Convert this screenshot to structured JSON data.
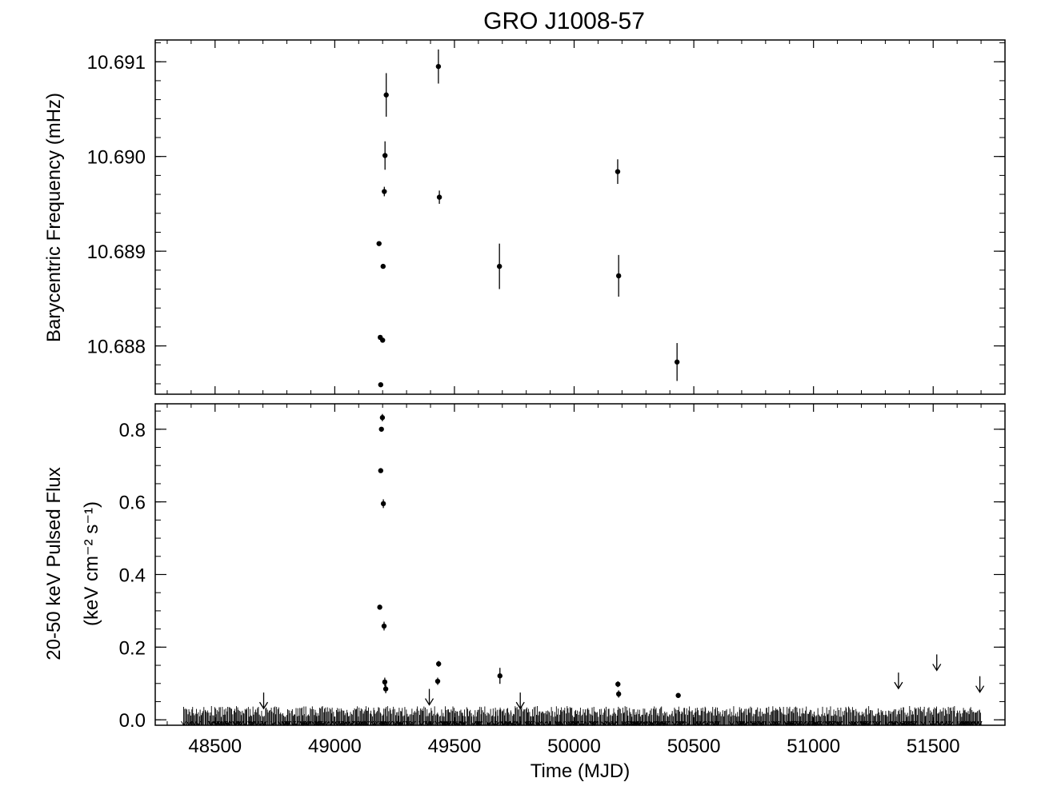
{
  "chart_data": [
    {
      "type": "scatter",
      "title": "GRO J1008-57",
      "xlabel": "",
      "ylabel": "Barycentric Frequency (mHz)",
      "xlim": [
        48250,
        51800
      ],
      "ylim": [
        10.68749,
        10.69123
      ],
      "x_ticks": [
        48500,
        49000,
        49500,
        50000,
        50500,
        51000,
        51500
      ],
      "y_ticks": [
        10.688,
        10.689,
        10.69,
        10.691
      ],
      "y_tick_labels": [
        "10.688",
        "10.689",
        "10.690",
        "10.691"
      ],
      "points": [
        {
          "x": 49185,
          "y": 10.68908,
          "err": 2e-05
        },
        {
          "x": 49190,
          "y": 10.68809,
          "err": 2e-05
        },
        {
          "x": 49192,
          "y": 10.68759,
          "err": 2e-05
        },
        {
          "x": 49200,
          "y": 10.68806,
          "err": 2e-05
        },
        {
          "x": 49202,
          "y": 10.68884,
          "err": 2e-05
        },
        {
          "x": 49207,
          "y": 10.68963,
          "err": 5e-05
        },
        {
          "x": 49210,
          "y": 10.69001,
          "err": 0.00015
        },
        {
          "x": 49215,
          "y": 10.69065,
          "err": 0.00023
        },
        {
          "x": 49433,
          "y": 10.69095,
          "err": 0.00018
        },
        {
          "x": 49437,
          "y": 10.68957,
          "err": 7e-05
        },
        {
          "x": 49688,
          "y": 10.68884,
          "err": 0.00024
        },
        {
          "x": 50182,
          "y": 10.68984,
          "err": 0.00013
        },
        {
          "x": 50186,
          "y": 10.68874,
          "err": 0.00022
        },
        {
          "x": 50430,
          "y": 10.68783,
          "err": 0.0002
        }
      ]
    },
    {
      "type": "scatter",
      "title": "",
      "xlabel": "Time (MJD)",
      "ylabel": "20-50 keV Pulsed Flux",
      "ylabel_line2": "(keV cm⁻² s⁻¹)",
      "xlim": [
        48250,
        51800
      ],
      "ylim": [
        -0.015,
        0.87
      ],
      "x_ticks": [
        48500,
        49000,
        49500,
        50000,
        50500,
        51000,
        51500
      ],
      "y_ticks": [
        0.0,
        0.2,
        0.4,
        0.6,
        0.8
      ],
      "y_tick_labels": [
        "0.0",
        "0.2",
        "0.4",
        "0.6",
        "0.8"
      ],
      "detections": [
        {
          "x": 49188,
          "y": 0.31,
          "err": 0.006
        },
        {
          "x": 49192,
          "y": 0.686,
          "err": 0.006
        },
        {
          "x": 49195,
          "y": 0.8,
          "err": 0.006
        },
        {
          "x": 49199,
          "y": 0.832,
          "err": 0.01
        },
        {
          "x": 49203,
          "y": 0.595,
          "err": 0.012
        },
        {
          "x": 49206,
          "y": 0.258,
          "err": 0.012
        },
        {
          "x": 49209,
          "y": 0.104,
          "err": 0.012
        },
        {
          "x": 49213,
          "y": 0.085,
          "err": 0.012
        },
        {
          "x": 49430,
          "y": 0.106,
          "err": 0.01
        },
        {
          "x": 49434,
          "y": 0.154,
          "err": 0.008
        },
        {
          "x": 49690,
          "y": 0.121,
          "err": 0.022
        },
        {
          "x": 50183,
          "y": 0.098,
          "err": 0.008
        },
        {
          "x": 50186,
          "y": 0.071,
          "err": 0.01
        },
        {
          "x": 50435,
          "y": 0.067,
          "err": 0.006
        }
      ],
      "upper_limits": [
        {
          "x": 48703,
          "y": 0.075
        },
        {
          "x": 49395,
          "y": 0.085
        },
        {
          "x": 49775,
          "y": 0.075
        },
        {
          "x": 51355,
          "y": 0.13
        },
        {
          "x": 51515,
          "y": 0.18
        },
        {
          "x": 51695,
          "y": 0.12
        }
      ],
      "background_band": {
        "x_start": 48370,
        "x_end": 51700,
        "y_low": -0.015,
        "y_high": 0.035
      }
    }
  ]
}
